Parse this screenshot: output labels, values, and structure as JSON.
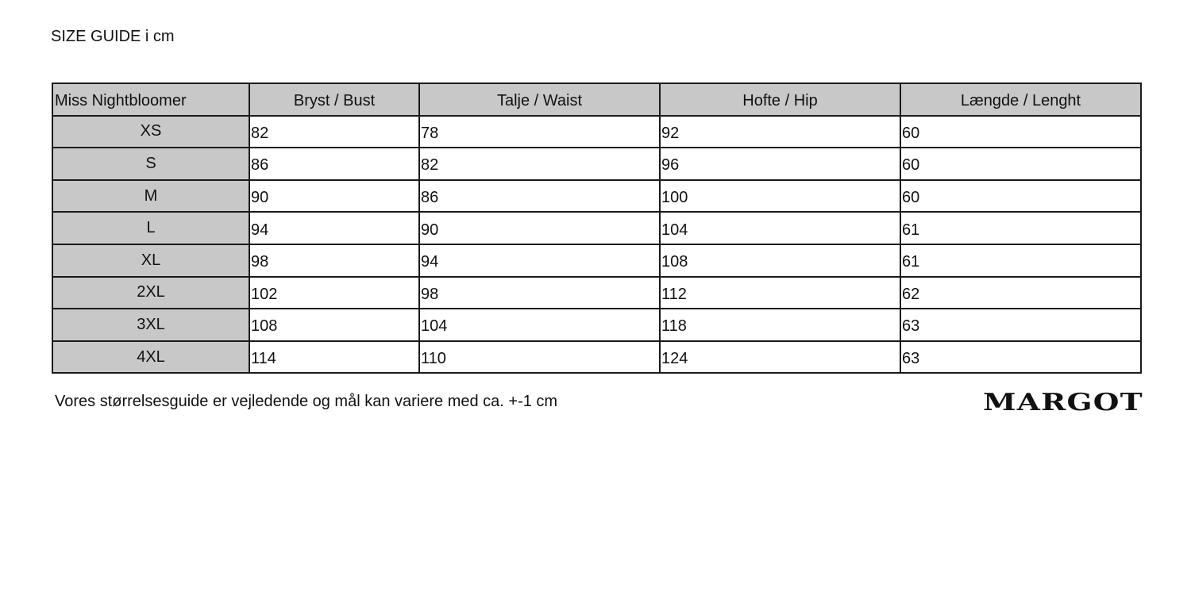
{
  "title": "SIZE GUIDE i cm",
  "table": {
    "headers": [
      "Miss Nightbloomer",
      "Bryst / Bust",
      "Talje / Waist",
      "Hofte / Hip",
      "Længde / Lenght"
    ],
    "rows": [
      [
        "XS",
        "82",
        "78",
        "92",
        "60"
      ],
      [
        "S",
        "86",
        "82",
        "96",
        "60"
      ],
      [
        "M",
        "90",
        "86",
        "100",
        "60"
      ],
      [
        "L",
        "94",
        "90",
        "104",
        "61"
      ],
      [
        "XL",
        "98",
        "94",
        "108",
        "61"
      ],
      [
        "2XL",
        "102",
        "98",
        "112",
        "62"
      ],
      [
        "3XL",
        "108",
        "104",
        "118",
        "63"
      ],
      [
        "4XL",
        "114",
        "110",
        "124",
        "63"
      ]
    ]
  },
  "note": "Vores størrelsesguide er vejledende og mål kan variere med ca. +-1 cm",
  "logo": "MARGOT",
  "colors": {
    "header_bg": "#c8c8c8",
    "border": "#1a1a1a"
  }
}
